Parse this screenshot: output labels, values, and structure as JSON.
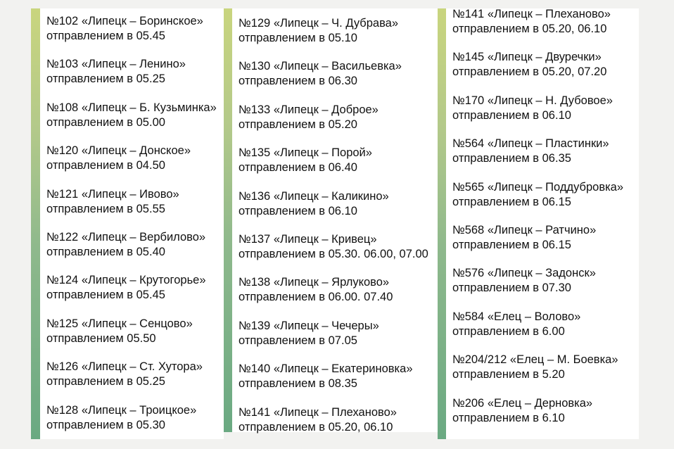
{
  "columns": [
    {
      "entries": [
        {
          "route": "№102 «Липецк – Боринское»",
          "departure": "отправлением в 05.45"
        },
        {
          "route": "№103 «Липецк – Ленино»",
          "departure": "отправлением в 05.25"
        },
        {
          "route": "№108 «Липецк – Б. Кузьминка»",
          "departure": "отправлением в 05.00"
        },
        {
          "route": "№120 «Липецк – Донское»",
          "departure": "отправлением в 04.50"
        },
        {
          "route": "№121 «Липецк – Ивово»",
          "departure": "отправлением в 05.55"
        },
        {
          "route": "№122 «Липецк – Вербилово»",
          "departure": "отправлением в 05.40"
        },
        {
          "route": "№124 «Липецк – Крутогорье»",
          "departure": "отправлением в 05.45"
        },
        {
          "route": "№125 «Липецк – Сенцово»",
          "departure": "отправлением 05.50"
        },
        {
          "route": "№126 «Липецк – Ст. Хутора»",
          "departure": "отправлением в 05.25"
        },
        {
          "route": "№128 «Липецк – Троицкое»",
          "departure": "отправлением в 05.30"
        }
      ]
    },
    {
      "entries": [
        {
          "route": "№129 «Липецк – Ч. Дубрава»",
          "departure": "отправлением в 05.10"
        },
        {
          "route": "№130 «Липецк – Васильевка»",
          "departure": "отправлением в 06.30"
        },
        {
          "route": "№133 «Липецк – Доброе»",
          "departure": "отправлением в 05.20"
        },
        {
          "route": "№135 «Липецк – Порой»",
          "departure": "отправлением в 06.40"
        },
        {
          "route": "№136 «Липецк – Каликино»",
          "departure": "отправлением в  06.10"
        },
        {
          "route": "№137 «Липецк – Кривец»",
          "departure": "отправлением в 05.30. 06.00, 07.00"
        },
        {
          "route": "№138 «Липецк – Ярлуково»",
          "departure": "отправлением в 06.00. 07.40"
        },
        {
          "route": "№139 «Липецк – Чечеры»",
          "departure": "отправлением в 07.05"
        },
        {
          "route": "№140 «Липецк – Екатериновка»",
          "departure": "отправлением в 08.35"
        },
        {
          "route": "№141 «Липецк – Плеханово»",
          "departure": "отправлением в 05.20, 06.10"
        }
      ]
    },
    {
      "entries": [
        {
          "route": "№141 «Липецк – Плеханово»",
          "departure": "отправлением в 05.20, 06.10"
        },
        {
          "route": "№145 «Липецк – Двуречки»",
          "departure": "отправлением в 05.20, 07.20"
        },
        {
          "route": "№170 «Липецк – Н. Дубовое»",
          "departure": "отправлением в 06.10"
        },
        {
          "route": "№564 «Липецк – Пластинки»",
          "departure": "отправлением в 06.35"
        },
        {
          "route": "№565 «Липецк – Поддубровка»",
          "departure": "отправлением в 06.15"
        },
        {
          "route": "№568 «Липецк – Ратчино»",
          "departure": "отправлением в 06.15"
        },
        {
          "route": "№576 «Липецк – Задонск»",
          "departure": "отправлением в 07.30"
        },
        {
          "route": "№584 «Елец – Волово»",
          "departure": "отправлением в 6.00"
        },
        {
          "route": "№204/212 «Елец – М. Боевка»",
          "departure": "отправлением в 5.20"
        },
        {
          "route": "№206 «Елец – Дерновка»",
          "departure": "отправлением в 6.10"
        }
      ]
    }
  ]
}
